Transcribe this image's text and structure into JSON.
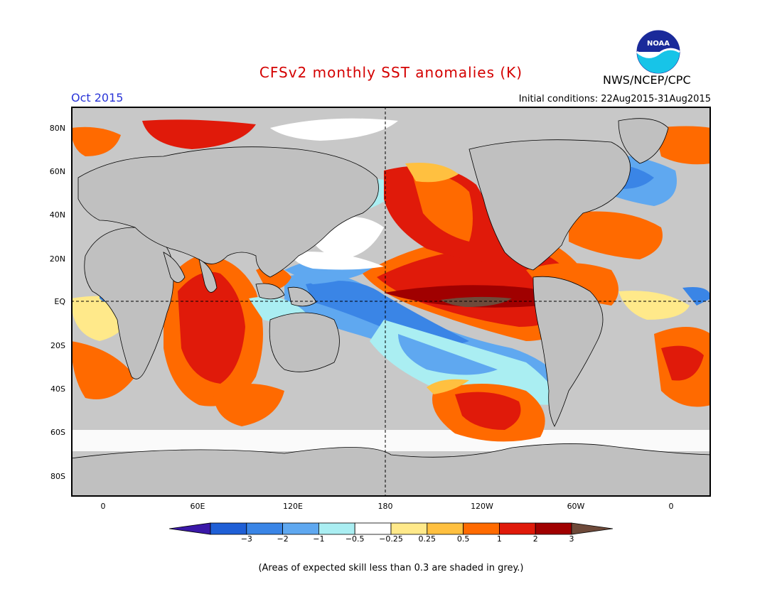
{
  "header": {
    "title": "CFSv2 monthly SST anomalies (K)",
    "month": "Oct 2015",
    "initial_conditions": "Initial conditions: 22Aug2015-31Aug2015",
    "agency": "NWS/NCEP/CPC",
    "logo_text": "NOAA",
    "title_color": "#d40000",
    "month_color": "#2a35d8"
  },
  "map": {
    "lat_labels": [
      "80N",
      "60N",
      "40N",
      "20N",
      "EQ",
      "20S",
      "40S",
      "60S",
      "80S"
    ],
    "lon_labels": [
      "0",
      "60E",
      "120E",
      "180",
      "120W",
      "60W",
      "0"
    ],
    "land_color": "#c0c0c0",
    "skill_grey": "#c8c8c8"
  },
  "colorbar": {
    "colors": [
      "#3a18a8",
      "#1f5fd6",
      "#3a85e6",
      "#5fa8f0",
      "#aaeef2",
      "#ffffff",
      "#ffffff",
      "#ffe98a",
      "#ffc040",
      "#ff6a00",
      "#e01a0a",
      "#a00000",
      "#6e4a3a"
    ],
    "boundaries": [
      "−3",
      "−2",
      "−1",
      "−0.5",
      "−0.25",
      "0.25",
      "0.5",
      "1",
      "2",
      "3"
    ]
  },
  "footer": {
    "note": "(Areas of expected skill less than 0.3 are shaded in grey.)"
  }
}
